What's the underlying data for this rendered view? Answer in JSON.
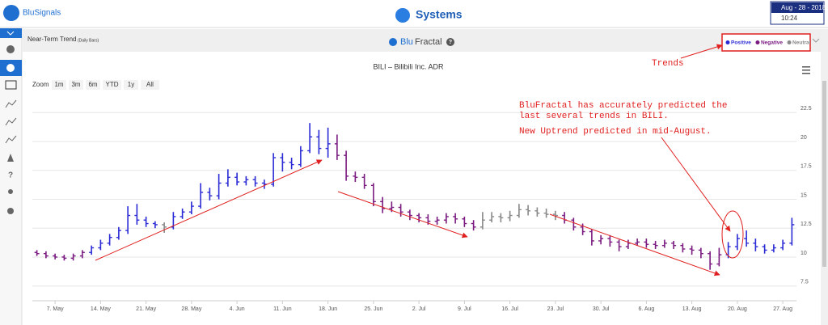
{
  "header": {
    "brand": "BluSignals",
    "title": "Systems",
    "date": "Aug - 28 - 2018",
    "time": "10:24"
  },
  "panel": {
    "title": "Near-Term Trend",
    "subtitle": "(Daily Bars)",
    "logo_blu": "Blu",
    "logo_fractal": "Fractal",
    "help": "?"
  },
  "zoom": {
    "label": "Zoom",
    "buttons": [
      "1m",
      "3m",
      "6m",
      "YTD",
      "1y",
      "All"
    ]
  },
  "annotations": [
    "BluFractal has accurately predicted the",
    "last several trends in BILI.",
    "New Uptrend predicted in mid-August.",
    "Trends"
  ],
  "chart_data": {
    "type": "ohlc",
    "title": "BILI – Bilibili Inc. ADR",
    "legend": [
      {
        "name": "Positive",
        "color": "#2b2bd6"
      },
      {
        "name": "Negative",
        "color": "#7a1a80"
      },
      {
        "name": "Neutral",
        "color": "#888888"
      }
    ],
    "categories": [
      null,
      null,
      "7. May",
      null,
      null,
      null,
      null,
      "14. May",
      null,
      null,
      null,
      null,
      "21. May",
      null,
      null,
      null,
      null,
      "28. May",
      null,
      null,
      null,
      null,
      "4. Jun",
      null,
      null,
      null,
      null,
      "11. Jun",
      null,
      null,
      null,
      null,
      "18. Jun",
      null,
      null,
      null,
      null,
      "25. Jun",
      null,
      null,
      null,
      null,
      "2. Jul",
      null,
      null,
      null,
      null,
      "9. Jul",
      null,
      null,
      null,
      null,
      "16. Jul",
      null,
      null,
      null,
      null,
      "23. Jul",
      null,
      null,
      null,
      null,
      "30. Jul",
      null,
      null,
      null,
      null,
      "6. Aug",
      null,
      null,
      null,
      null,
      "13. Aug",
      null,
      null,
      null,
      null,
      "20. Aug",
      null,
      null,
      null,
      null,
      "27. Aug",
      null
    ],
    "series": [
      {
        "open": [
          10.4,
          10.3,
          10.1,
          10.0,
          9.9,
          10.1,
          10.4,
          10.8,
          11.2,
          11.7,
          12.3,
          13.6,
          13.2,
          12.9,
          12.8,
          12.6,
          13.5,
          13.9,
          14.4,
          15.6,
          15.3,
          16.4,
          16.9,
          16.5,
          16.7,
          16.4,
          16.3,
          18.6,
          18.2,
          18.0,
          19.2,
          20.4,
          19.4,
          19.8,
          18.8,
          17.0,
          16.9,
          16.2,
          14.8,
          14.2,
          14.3,
          13.9,
          13.6,
          13.4,
          13.1,
          13.2,
          13.5,
          13.3,
          12.9,
          12.6,
          13.2,
          13.5,
          13.4,
          13.6,
          14.1,
          14.0,
          13.8,
          13.7,
          13.6,
          13.2,
          12.6,
          12.2,
          11.4,
          11.6,
          11.3,
          10.9,
          11.2,
          11.3,
          11.1,
          11.0,
          11.2,
          11.0,
          10.7,
          10.6,
          10.3,
          9.4,
          10.2,
          10.9,
          11.6,
          11.2,
          10.9,
          10.6,
          10.8,
          11.2
        ],
        "high": [
          10.6,
          10.5,
          10.3,
          10.2,
          10.3,
          10.6,
          11.0,
          11.5,
          12.0,
          12.6,
          14.4,
          14.6,
          13.5,
          13.1,
          13.0,
          13.9,
          14.2,
          14.8,
          16.4,
          16.0,
          17.2,
          17.6,
          17.3,
          17.0,
          17.0,
          16.7,
          19.0,
          19.0,
          18.6,
          19.6,
          21.6,
          21.0,
          21.2,
          20.6,
          19.2,
          17.4,
          17.2,
          16.4,
          15.2,
          14.8,
          14.6,
          14.1,
          13.8,
          13.7,
          13.5,
          13.8,
          13.8,
          13.5,
          13.2,
          13.9,
          13.9,
          13.8,
          14.0,
          14.6,
          14.5,
          14.3,
          14.2,
          14.0,
          13.9,
          13.4,
          12.9,
          12.4,
          11.9,
          11.9,
          11.5,
          11.5,
          11.6,
          11.6,
          11.4,
          11.5,
          11.4,
          11.2,
          11.0,
          10.8,
          10.5,
          10.8,
          11.3,
          12.0,
          12.3,
          11.6,
          11.1,
          11.1,
          11.5,
          13.4
        ],
        "low": [
          10.1,
          9.9,
          9.8,
          9.7,
          9.7,
          9.9,
          10.2,
          10.6,
          11.0,
          11.5,
          12.0,
          12.8,
          12.6,
          12.5,
          12.1,
          12.4,
          13.3,
          13.7,
          14.2,
          14.9,
          15.0,
          16.1,
          16.2,
          16.2,
          16.1,
          15.9,
          16.1,
          17.4,
          17.6,
          17.8,
          19.0,
          18.9,
          18.6,
          18.4,
          16.6,
          16.5,
          15.9,
          14.4,
          13.8,
          13.9,
          13.5,
          13.2,
          13.0,
          12.8,
          12.8,
          12.9,
          12.9,
          12.6,
          12.3,
          12.4,
          13.0,
          13.0,
          13.1,
          13.4,
          13.6,
          13.5,
          13.4,
          13.2,
          12.9,
          12.3,
          11.9,
          11.0,
          11.1,
          10.9,
          10.5,
          10.7,
          11.0,
          10.8,
          10.7,
          10.8,
          10.7,
          10.4,
          10.2,
          9.9,
          8.9,
          9.2,
          9.9,
          10.6,
          10.9,
          10.5,
          10.3,
          10.4,
          10.6,
          11.0
        ],
        "close": [
          10.3,
          10.1,
          10.0,
          9.9,
          10.1,
          10.4,
          10.8,
          11.2,
          11.7,
          12.3,
          13.6,
          13.2,
          12.9,
          12.8,
          12.6,
          13.5,
          13.9,
          14.4,
          15.6,
          15.3,
          16.4,
          16.9,
          16.5,
          16.7,
          16.4,
          16.3,
          18.6,
          18.2,
          18.0,
          19.2,
          20.4,
          19.4,
          19.8,
          18.8,
          17.0,
          16.9,
          16.2,
          14.8,
          14.2,
          14.3,
          13.9,
          13.6,
          13.4,
          13.1,
          13.2,
          13.5,
          13.3,
          12.9,
          12.6,
          13.2,
          13.5,
          13.4,
          13.6,
          14.1,
          14.0,
          13.8,
          13.7,
          13.6,
          13.2,
          12.6,
          12.2,
          11.4,
          11.6,
          11.3,
          10.9,
          11.2,
          11.3,
          11.1,
          11.0,
          11.2,
          11.0,
          10.7,
          10.6,
          10.3,
          9.4,
          10.2,
          10.9,
          11.6,
          11.2,
          10.9,
          10.6,
          10.8,
          11.2,
          12.8
        ],
        "colors": [
          "#7a1a80",
          "#7a1a80",
          "#7a1a80",
          "#7a1a80",
          "#7a1a80",
          "#7a1a80",
          "#2b2bd6",
          "#2b2bd6",
          "#2b2bd6",
          "#2b2bd6",
          "#2b2bd6",
          "#2b2bd6",
          "#2b2bd6",
          "#2b2bd6",
          "#888888",
          "#2b2bd6",
          "#2b2bd6",
          "#2b2bd6",
          "#2b2bd6",
          "#2b2bd6",
          "#2b2bd6",
          "#2b2bd6",
          "#2b2bd6",
          "#2b2bd6",
          "#2b2bd6",
          "#2b2bd6",
          "#2b2bd6",
          "#2b2bd6",
          "#2b2bd6",
          "#2b2bd6",
          "#2b2bd6",
          "#2b2bd6",
          "#2b2bd6",
          "#7a1a80",
          "#7a1a80",
          "#7a1a80",
          "#7a1a80",
          "#7a1a80",
          "#7a1a80",
          "#7a1a80",
          "#7a1a80",
          "#7a1a80",
          "#7a1a80",
          "#7a1a80",
          "#7a1a80",
          "#7a1a80",
          "#7a1a80",
          "#7a1a80",
          "#7a1a80",
          "#888888",
          "#888888",
          "#888888",
          "#888888",
          "#888888",
          "#888888",
          "#888888",
          "#888888",
          "#888888",
          "#7a1a80",
          "#7a1a80",
          "#7a1a80",
          "#7a1a80",
          "#7a1a80",
          "#7a1a80",
          "#7a1a80",
          "#7a1a80",
          "#7a1a80",
          "#7a1a80",
          "#7a1a80",
          "#7a1a80",
          "#7a1a80",
          "#7a1a80",
          "#7a1a80",
          "#7a1a80",
          "#7a1a80",
          "#7a1a80",
          "#2b2bd6",
          "#2b2bd6",
          "#2b2bd6",
          "#2b2bd6",
          "#2b2bd6",
          "#2b2bd6",
          "#2b2bd6",
          "#2b2bd6"
        ]
      }
    ],
    "ylim": [
      6.5,
      23.5
    ],
    "yticks": [
      7.5,
      10,
      12.5,
      15,
      17.5,
      20,
      22.5
    ],
    "grid": true
  }
}
